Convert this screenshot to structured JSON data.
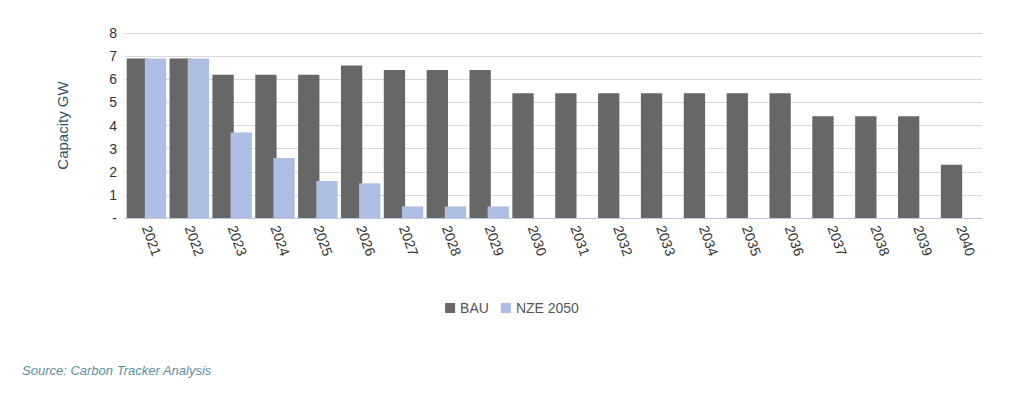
{
  "chart_data": {
    "type": "bar",
    "y_label": "Capacity GW",
    "categories": [
      "2021",
      "2022",
      "2023",
      "2024",
      "2025",
      "2026",
      "2027",
      "2028",
      "2029",
      "2030",
      "2031",
      "2032",
      "2033",
      "2034",
      "2035",
      "2036",
      "2037",
      "2038",
      "2039",
      "2040"
    ],
    "series": [
      {
        "name": "BAU",
        "color": "#676767",
        "values": [
          6.9,
          6.9,
          6.2,
          6.2,
          6.2,
          6.6,
          6.4,
          6.4,
          6.4,
          5.4,
          5.4,
          5.4,
          5.4,
          5.4,
          5.4,
          5.4,
          4.4,
          4.4,
          4.4,
          2.3
        ]
      },
      {
        "name": "NZE 2050",
        "color": "#adbde3",
        "values": [
          6.9,
          6.9,
          3.7,
          2.6,
          1.6,
          1.5,
          0.5,
          0.5,
          0.5,
          0,
          0,
          0,
          0,
          0,
          0,
          0,
          0,
          0,
          0,
          0
        ]
      }
    ],
    "ylim": [
      0,
      8
    ],
    "yticks": [
      {
        "value": 0,
        "label": "-"
      },
      1,
      2,
      3,
      4,
      5,
      6,
      7,
      8
    ],
    "grid": true,
    "legend": "bottom",
    "annotations": [
      "Source: Carbon Tracker Analysis"
    ]
  }
}
